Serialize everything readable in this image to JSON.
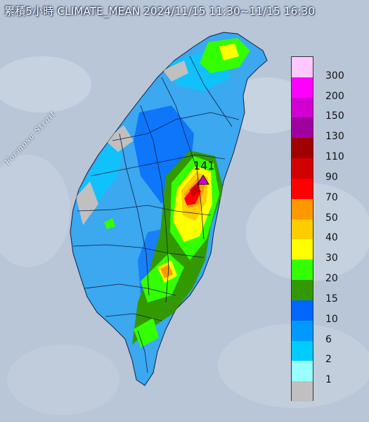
{
  "title": "累積5小時 CLIMATE_MEAN 2024/11/15 11:30~11/15 16:30",
  "strait_label": "Formosa Strait",
  "max_station": {
    "value_label": "141",
    "marker_color": "#d000d0"
  },
  "legend": {
    "labels": [
      "300",
      "200",
      "150",
      "130",
      "110",
      "90",
      "70",
      "50",
      "40",
      "30",
      "20",
      "15",
      "10",
      "6",
      "2",
      "1"
    ],
    "colors": [
      "#ffc8ff",
      "#ff00ff",
      "#d000d0",
      "#a000a0",
      "#a00000",
      "#d00000",
      "#ff0000",
      "#ff9900",
      "#ffcc00",
      "#ffff00",
      "#33ff00",
      "#339900",
      "#0066ff",
      "#0099ff",
      "#00ccff",
      "#99ffff",
      "#c0c0c0"
    ]
  },
  "colors": {
    "sea": "#b9c6d8",
    "land_base": "#3ba8f0",
    "mountain_gray": "#c0c0c0"
  }
}
